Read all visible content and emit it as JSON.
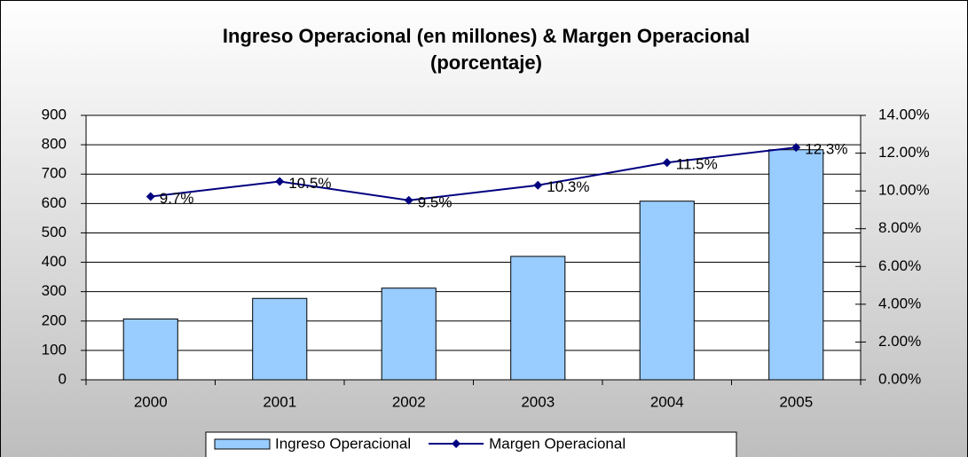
{
  "chart_data": {
    "type": "bar-line",
    "title": [
      "Ingreso Operacional (en millones) & Margen Operacional",
      "(porcentaje)"
    ],
    "categories": [
      "2000",
      "2001",
      "2002",
      "2003",
      "2004",
      "2005"
    ],
    "series": [
      {
        "name": "Ingreso Operacional",
        "type": "bar",
        "color": "#99ccff",
        "values": [
          207,
          277,
          312,
          420,
          608,
          783
        ]
      },
      {
        "name": "Margen Operacional",
        "type": "line",
        "axis": "y2",
        "color": "#000080",
        "values": [
          9.7,
          10.5,
          9.5,
          10.3,
          11.5,
          12.3
        ],
        "value_labels": [
          "9.7%",
          "10.5%",
          "9.5%",
          "10.3%",
          "11.5%",
          "12.3%"
        ]
      }
    ],
    "ylim": [
      0,
      900
    ],
    "yticks": [
      0,
      100,
      200,
      300,
      400,
      500,
      600,
      700,
      800,
      900
    ],
    "y2lim": [
      0,
      14
    ],
    "y2ticks": [
      {
        "value": 0,
        "label": "0.00%"
      },
      {
        "value": 2,
        "label": "2.00%"
      },
      {
        "value": 4,
        "label": "4.00%"
      },
      {
        "value": 6,
        "label": "6.00%"
      },
      {
        "value": 8,
        "label": "8.00%"
      },
      {
        "value": 10,
        "label": "10.00%"
      },
      {
        "value": 12,
        "label": "12.00%"
      },
      {
        "value": 14,
        "label": "14.00%"
      }
    ],
    "grid": true,
    "legend": "bottom"
  }
}
